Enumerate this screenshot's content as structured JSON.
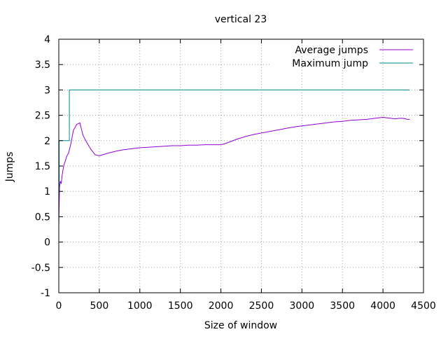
{
  "chart_data": {
    "type": "line",
    "title": "vertical 23",
    "xlabel": "Size of window",
    "ylabel": "Jumps",
    "xlim": [
      0,
      4500
    ],
    "ylim": [
      -1,
      4
    ],
    "xticks": [
      0,
      500,
      1000,
      1500,
      2000,
      2500,
      3000,
      3500,
      4000,
      4500
    ],
    "yticks": [
      -1,
      -0.5,
      0,
      0.5,
      1,
      1.5,
      2,
      2.5,
      3,
      3.5,
      4
    ],
    "xtick_labels": [
      "0",
      "500",
      "1000",
      "1500",
      "2000",
      "2500",
      "3000",
      "3500",
      "4000",
      "4500"
    ],
    "ytick_labels": [
      "-1",
      "-0.5",
      "0",
      "0.5",
      "1",
      "1.5",
      "2",
      "2.5",
      "3",
      "3.5",
      "4"
    ],
    "grid": true,
    "legend_position": "top-right",
    "series": [
      {
        "name": "Average jumps",
        "color": "#9400d3",
        "step": false,
        "x": [
          0,
          5,
          10,
          20,
          30,
          40,
          60,
          80,
          100,
          120,
          150,
          180,
          220,
          260,
          300,
          350,
          400,
          450,
          500,
          600,
          700,
          800,
          900,
          1000,
          1100,
          1200,
          1300,
          1400,
          1500,
          1600,
          1700,
          1800,
          1900,
          2000,
          2050,
          2100,
          2200,
          2300,
          2400,
          2500,
          2600,
          2700,
          2800,
          2900,
          3000,
          3100,
          3200,
          3300,
          3400,
          3500,
          3600,
          3700,
          3800,
          3900,
          4000,
          4050,
          4100,
          4150,
          4200,
          4250,
          4300,
          4330
        ],
        "y": [
          0.3,
          0.8,
          1.1,
          1.2,
          1.15,
          1.3,
          1.5,
          1.6,
          1.7,
          1.75,
          1.95,
          2.2,
          2.32,
          2.35,
          2.1,
          1.95,
          1.82,
          1.72,
          1.7,
          1.75,
          1.79,
          1.82,
          1.84,
          1.86,
          1.87,
          1.88,
          1.89,
          1.9,
          1.9,
          1.91,
          1.91,
          1.92,
          1.92,
          1.92,
          1.94,
          1.97,
          2.03,
          2.08,
          2.12,
          2.15,
          2.18,
          2.21,
          2.24,
          2.27,
          2.29,
          2.31,
          2.33,
          2.35,
          2.37,
          2.38,
          2.4,
          2.41,
          2.42,
          2.44,
          2.46,
          2.45,
          2.44,
          2.43,
          2.44,
          2.44,
          2.42,
          2.42
        ]
      },
      {
        "name": "Maximum jump",
        "color": "#008b8b",
        "step": true,
        "x": [
          0,
          5,
          130,
          4330
        ],
        "y": [
          1,
          2,
          3,
          3
        ]
      }
    ]
  }
}
